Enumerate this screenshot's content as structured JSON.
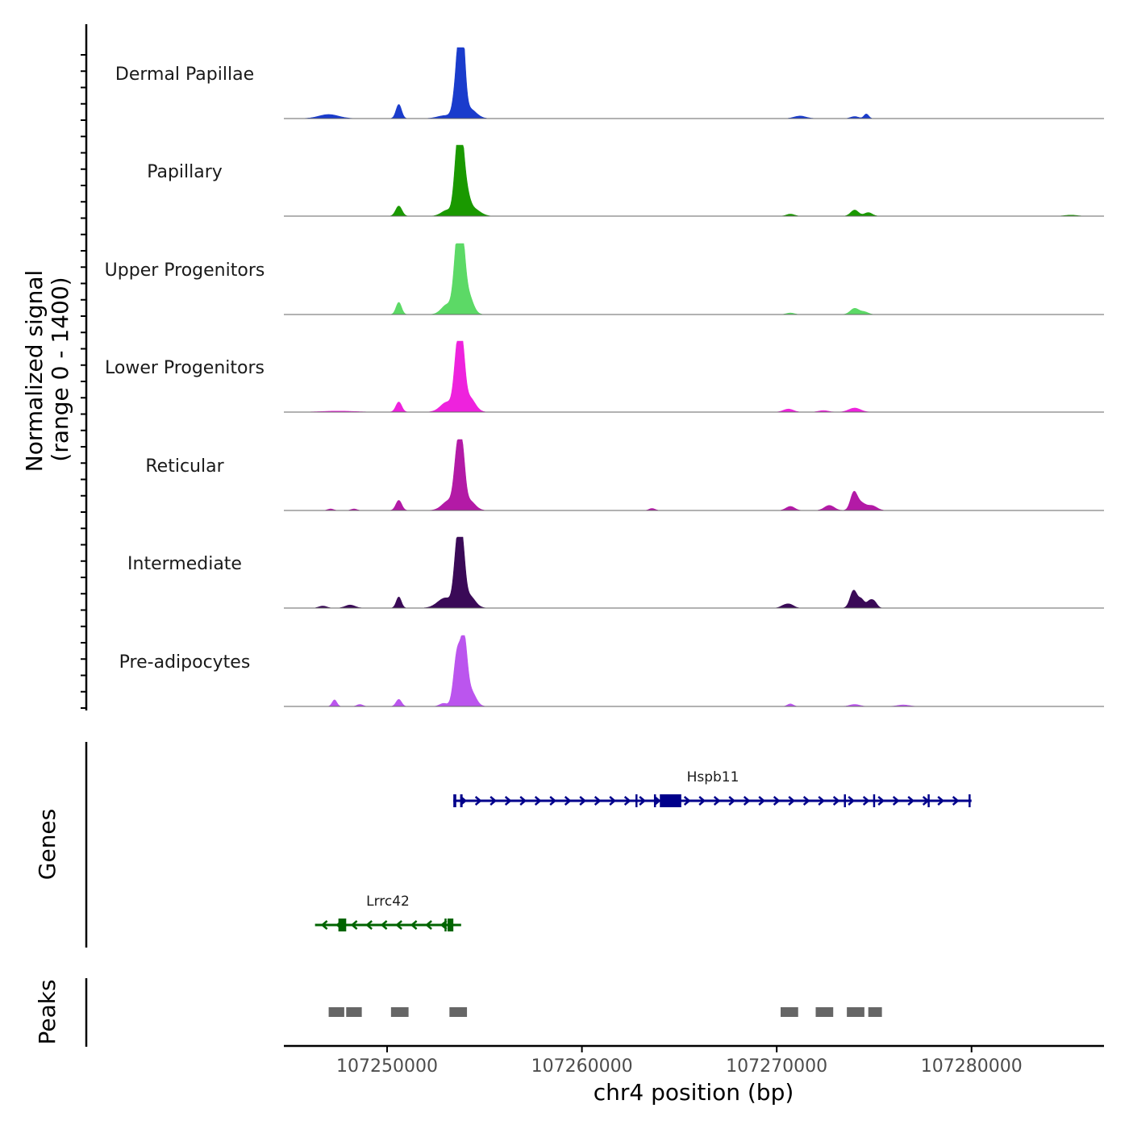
{
  "chart_data": {
    "type": "area",
    "title": "",
    "chromosome": "chr4",
    "xlabel": "chr4 position (bp)",
    "ylabel_line1": "Normalized signal",
    "ylabel_line2": "(range 0 - 1400)",
    "ylim": [
      0,
      1400
    ],
    "xlim": [
      107244700,
      107286800
    ],
    "x_ticks": [
      107250000,
      107260000,
      107270000,
      107280000
    ],
    "x_tick_labels": [
      "107250000",
      "107260000",
      "107270000",
      "107280000"
    ],
    "tracks": [
      {
        "name": "Dermal Papillae",
        "color": "#1a3ccc",
        "peaks": [
          [
            107247000,
            80,
            500
          ],
          [
            107250600,
            280,
            140
          ],
          [
            107253000,
            60,
            400
          ],
          [
            107253650,
            950,
            190
          ],
          [
            107253780,
            850,
            150
          ],
          [
            107253900,
            700,
            140
          ],
          [
            107254200,
            200,
            350
          ],
          [
            107271200,
            50,
            300
          ],
          [
            107274000,
            40,
            200
          ],
          [
            107274600,
            90,
            120
          ]
        ]
      },
      {
        "name": "Papillary",
        "color": "#1a9900",
        "peaks": [
          [
            107250600,
            200,
            160
          ],
          [
            107253100,
            120,
            300
          ],
          [
            107253600,
            1100,
            160
          ],
          [
            107253800,
            1000,
            150
          ],
          [
            107254000,
            500,
            200
          ],
          [
            107254400,
            150,
            350
          ],
          [
            107270700,
            40,
            200
          ],
          [
            107274000,
            120,
            200
          ],
          [
            107274700,
            70,
            200
          ],
          [
            107285100,
            20,
            300
          ]
        ]
      },
      {
        "name": "Upper Progenitors",
        "color": "#5cd966",
        "peaks": [
          [
            107250600,
            240,
            140
          ],
          [
            107253100,
            200,
            300
          ],
          [
            107253600,
            1300,
            170
          ],
          [
            107253850,
            1150,
            160
          ],
          [
            107254150,
            400,
            250
          ],
          [
            107270700,
            30,
            200
          ],
          [
            107274000,
            120,
            220
          ],
          [
            107274500,
            50,
            200
          ]
        ]
      },
      {
        "name": "Lower Progenitors",
        "color": "#ee22dd",
        "peaks": [
          [
            107247500,
            20,
            800
          ],
          [
            107250600,
            200,
            150
          ],
          [
            107253100,
            200,
            350
          ],
          [
            107253600,
            1100,
            160
          ],
          [
            107253850,
            1050,
            150
          ],
          [
            107254200,
            300,
            300
          ],
          [
            107270600,
            60,
            250
          ],
          [
            107272400,
            30,
            250
          ],
          [
            107274000,
            80,
            300
          ]
        ]
      },
      {
        "name": "Reticular",
        "color": "#b31aa6",
        "peaks": [
          [
            107247100,
            30,
            150
          ],
          [
            107248300,
            30,
            150
          ],
          [
            107250600,
            200,
            150
          ],
          [
            107253200,
            200,
            350
          ],
          [
            107253600,
            1000,
            160
          ],
          [
            107253850,
            1000,
            150
          ],
          [
            107254200,
            200,
            300
          ],
          [
            107263600,
            40,
            150
          ],
          [
            107270700,
            80,
            220
          ],
          [
            107272700,
            100,
            250
          ],
          [
            107273950,
            320,
            170
          ],
          [
            107274300,
            150,
            250
          ],
          [
            107274900,
            90,
            250
          ]
        ]
      },
      {
        "name": "Intermediate",
        "color": "#3a0a57",
        "peaks": [
          [
            107246700,
            40,
            200
          ],
          [
            107248100,
            60,
            250
          ],
          [
            107250600,
            220,
            130
          ],
          [
            107253000,
            200,
            400
          ],
          [
            107253600,
            1150,
            160
          ],
          [
            107253850,
            1050,
            150
          ],
          [
            107254200,
            250,
            300
          ],
          [
            107270400,
            50,
            200
          ],
          [
            107270700,
            60,
            200
          ],
          [
            107273950,
            350,
            180
          ],
          [
            107274350,
            160,
            150
          ],
          [
            107274750,
            120,
            150
          ],
          [
            107275000,
            120,
            150
          ]
        ]
      },
      {
        "name": "Pre-adipocytes",
        "color": "#bb55ee",
        "peaks": [
          [
            107247300,
            130,
            120
          ],
          [
            107248600,
            40,
            150
          ],
          [
            107250600,
            140,
            140
          ],
          [
            107252900,
            60,
            200
          ],
          [
            107253600,
            1050,
            180
          ],
          [
            107253950,
            1200,
            160
          ],
          [
            107254300,
            300,
            250
          ],
          [
            107270700,
            50,
            150
          ],
          [
            107274000,
            40,
            250
          ],
          [
            107276500,
            30,
            300
          ]
        ]
      }
    ],
    "genes_title": "Genes",
    "genes": [
      {
        "name": "Hspb11",
        "color": "#00008b",
        "strand": "+",
        "start": 107253400,
        "end": 107280000,
        "exons": [
          [
            107253400,
            107253550
          ],
          [
            107253750,
            107253850
          ],
          [
            107264000,
            107265100
          ]
        ],
        "markers": [
          107262800,
          107263750,
          107273500,
          107275000,
          107277800,
          107279900
        ]
      },
      {
        "name": "Lrrc42",
        "color": "#006400",
        "strand": "-",
        "start": 107246300,
        "end": 107253800,
        "exons": [
          [
            107247500,
            107247900
          ],
          [
            107253100,
            107253400
          ]
        ],
        "markers": [
          107253000
        ]
      }
    ],
    "peaks_title": "Peaks",
    "peak_regions": [
      [
        107247000,
        107247800
      ],
      [
        107247900,
        107248700
      ],
      [
        107250200,
        107251100
      ],
      [
        107253200,
        107254100
      ],
      [
        107270200,
        107271100
      ],
      [
        107272000,
        107272900
      ],
      [
        107273600,
        107274500
      ],
      [
        107274700,
        107275400
      ]
    ]
  }
}
